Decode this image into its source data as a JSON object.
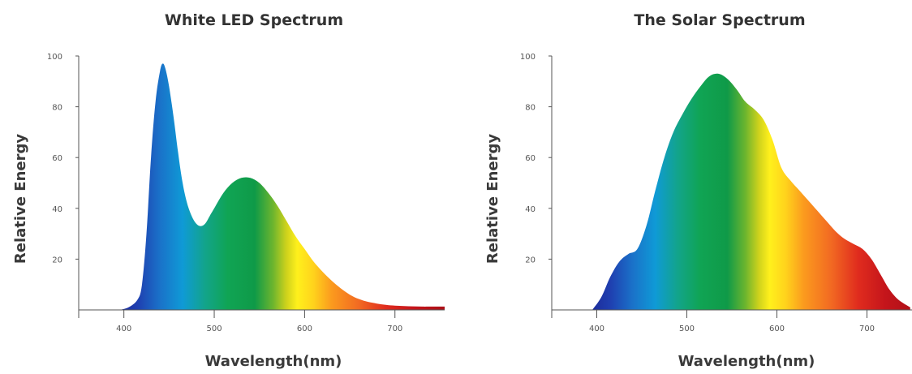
{
  "chart_data": [
    {
      "type": "area",
      "title": "White LED Spectrum",
      "xlabel": "Wavelength(nm)",
      "ylabel": "Relative Energy",
      "xlim": [
        350,
        755
      ],
      "ylim": [
        0,
        100
      ],
      "x_ticks": [
        400,
        500,
        600,
        700
      ],
      "y_ticks": [
        20,
        40,
        60,
        80,
        100
      ],
      "fill": "visible-spectrum gradient",
      "series": [
        {
          "x": [
            395,
            405,
            415,
            420,
            425,
            430,
            435,
            440,
            443,
            446,
            450,
            455,
            460,
            465,
            470,
            475,
            480,
            485,
            490,
            495,
            500,
            510,
            520,
            530,
            540,
            550,
            560,
            570,
            580,
            590,
            600,
            610,
            620,
            630,
            640,
            650,
            660,
            670,
            680,
            690,
            700,
            710,
            720,
            730,
            740,
            755
          ],
          "y": [
            0,
            1,
            4,
            10,
            30,
            60,
            82,
            94,
            97,
            95,
            88,
            76,
            62,
            50,
            42,
            37,
            34,
            33,
            34,
            37,
            40,
            46,
            50,
            52,
            52,
            50,
            46,
            41,
            35,
            29,
            24,
            19,
            15,
            11.5,
            8.5,
            6,
            4.3,
            3.2,
            2.5,
            2,
            1.7,
            1.5,
            1.4,
            1.3,
            1.3,
            1.3
          ]
        }
      ]
    },
    {
      "type": "area",
      "title": "The Solar Spectrum",
      "xlabel": "Wavelength(nm)",
      "ylabel": "Relative Energy",
      "xlim": [
        350,
        750
      ],
      "ylim": [
        0,
        100
      ],
      "x_ticks": [
        400,
        500,
        600,
        700
      ],
      "y_ticks": [
        20,
        40,
        60,
        80,
        100
      ],
      "fill": "visible-spectrum gradient",
      "series": [
        {
          "x": [
            395,
            405,
            415,
            425,
            435,
            445,
            455,
            465,
            475,
            485,
            495,
            505,
            515,
            525,
            535,
            545,
            555,
            565,
            575,
            585,
            595,
            605,
            615,
            625,
            635,
            645,
            655,
            665,
            675,
            685,
            695,
            705,
            715,
            725,
            735,
            748
          ],
          "y": [
            0,
            5,
            13,
            19,
            22,
            24,
            33,
            47,
            60,
            70,
            77,
            83,
            88,
            92,
            93,
            91,
            87,
            82,
            79,
            75,
            67,
            56,
            51,
            47,
            43,
            39,
            35,
            31,
            28,
            26,
            24,
            20,
            14,
            8,
            4,
            1
          ]
        }
      ]
    }
  ]
}
